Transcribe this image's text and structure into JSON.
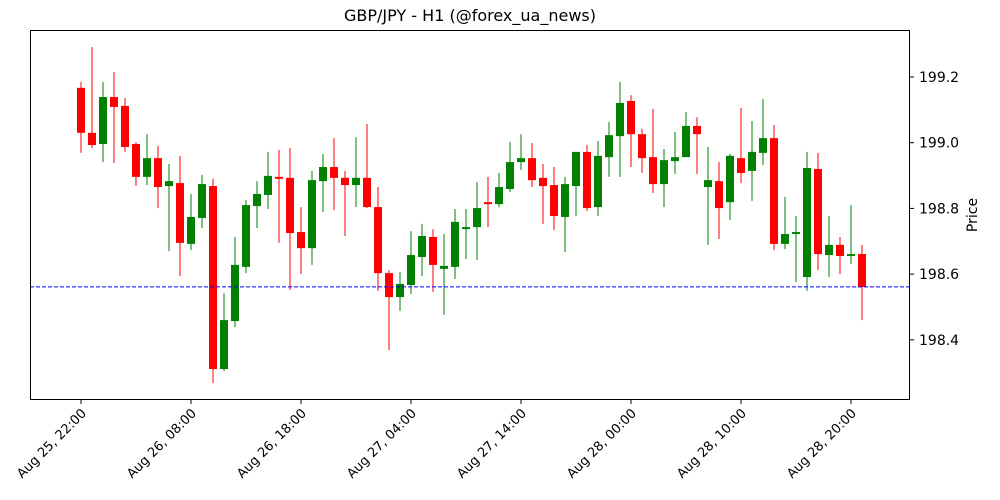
{
  "chart_data": {
    "type": "candlestick",
    "title": "GBP/JPY - H1 (@forex_ua_news)",
    "xlabel": "",
    "ylabel": "Price",
    "ylim": [
      198.22,
      199.33
    ],
    "yticks": [
      198.4,
      198.6,
      198.8,
      199.0,
      199.2
    ],
    "ytick_labels": [
      "198.4",
      "198.6",
      "198.8",
      "199.0",
      "199.2"
    ],
    "xticks": [
      {
        "index": 0,
        "label": "Aug 25, 22:00"
      },
      {
        "index": 10,
        "label": "Aug 26, 08:00"
      },
      {
        "index": 20,
        "label": "Aug 26, 18:00"
      },
      {
        "index": 30,
        "label": "Aug 27, 04:00"
      },
      {
        "index": 40,
        "label": "Aug 27, 14:00"
      },
      {
        "index": 50,
        "label": "Aug 28, 00:00"
      },
      {
        "index": 60,
        "label": "Aug 28, 10:00"
      },
      {
        "index": 70,
        "label": "Aug 28, 20:00"
      }
    ],
    "grid": false,
    "up_color": "#008000",
    "down_color": "#ff0000",
    "reference_line": {
      "value": 198.561,
      "color": "#0000ff",
      "style": "dashed"
    },
    "candle_fields": [
      "time",
      "open",
      "high",
      "low",
      "close"
    ],
    "candles": [
      [
        "Aug 25, 22:00",
        199.167,
        199.185,
        198.969,
        199.03
      ],
      [
        "Aug 25, 23:00",
        199.03,
        199.291,
        198.984,
        198.993
      ],
      [
        "Aug 26, 00:00",
        198.996,
        199.185,
        198.941,
        199.139
      ],
      [
        "Aug 26, 01:00",
        199.139,
        199.215,
        198.938,
        199.109
      ],
      [
        "Aug 26, 02:00",
        199.112,
        199.136,
        198.972,
        198.987
      ],
      [
        "Aug 26, 03:00",
        198.996,
        199.002,
        198.868,
        198.896
      ],
      [
        "Aug 26, 04:00",
        198.896,
        199.026,
        198.871,
        198.953
      ],
      [
        "Aug 26, 05:00",
        198.953,
        198.99,
        198.801,
        198.865
      ],
      [
        "Aug 26, 06:00",
        198.868,
        198.935,
        198.67,
        198.883
      ],
      [
        "Aug 26, 07:00",
        198.877,
        198.96,
        198.594,
        198.695
      ],
      [
        "Aug 26, 08:00",
        198.692,
        198.844,
        198.673,
        198.774
      ],
      [
        "Aug 26, 09:00",
        198.771,
        198.902,
        198.74,
        198.874
      ],
      [
        "Aug 26, 10:00",
        198.868,
        198.89,
        198.268,
        198.311
      ],
      [
        "Aug 26, 11:00",
        198.311,
        198.542,
        198.305,
        198.46
      ],
      [
        "Aug 26, 12:00",
        198.457,
        198.713,
        198.439,
        198.628
      ],
      [
        "Aug 26, 13:00",
        198.622,
        198.826,
        198.603,
        198.81
      ],
      [
        "Aug 26, 14:00",
        198.807,
        198.883,
        198.74,
        198.844
      ],
      [
        "Aug 26, 15:00",
        198.841,
        198.972,
        198.798,
        198.899
      ],
      [
        "Aug 26, 16:00",
        198.896,
        198.978,
        198.695,
        198.89
      ],
      [
        "Aug 26, 17:00",
        198.893,
        198.984,
        198.552,
        198.725
      ],
      [
        "Aug 26, 18:00",
        198.728,
        198.804,
        198.6,
        198.679
      ],
      [
        "Aug 26, 19:00",
        198.679,
        198.914,
        198.628,
        198.886
      ],
      [
        "Aug 26, 20:00",
        198.883,
        198.966,
        198.789,
        198.926
      ],
      [
        "Aug 26, 21:00",
        198.926,
        199.014,
        198.795,
        198.893
      ],
      [
        "Aug 26, 22:00",
        198.893,
        198.914,
        198.716,
        198.871
      ],
      [
        "Aug 26, 23:00",
        198.871,
        199.017,
        198.804,
        198.893
      ],
      [
        "Aug 27, 00:00",
        198.893,
        199.057,
        198.801,
        198.804
      ],
      [
        "Aug 27, 01:00",
        198.804,
        198.865,
        198.549,
        198.603
      ],
      [
        "Aug 27, 02:00",
        198.603,
        198.612,
        198.369,
        198.53
      ],
      [
        "Aug 27, 03:00",
        198.53,
        198.606,
        198.488,
        198.57
      ],
      [
        "Aug 27, 04:00",
        198.567,
        198.731,
        198.539,
        198.658
      ],
      [
        "Aug 27, 05:00",
        198.652,
        198.753,
        198.594,
        198.716
      ],
      [
        "Aug 27, 06:00",
        198.713,
        198.737,
        198.546,
        198.628
      ],
      [
        "Aug 27, 07:00",
        198.616,
        198.722,
        198.476,
        198.625
      ],
      [
        "Aug 27, 08:00",
        198.622,
        198.798,
        198.585,
        198.759
      ],
      [
        "Aug 27, 09:00",
        198.737,
        198.798,
        198.646,
        198.743
      ],
      [
        "Aug 27, 10:00",
        198.743,
        198.88,
        198.643,
        198.801
      ],
      [
        "Aug 27, 11:00",
        198.819,
        198.896,
        198.743,
        198.813
      ],
      [
        "Aug 27, 12:00",
        198.813,
        198.908,
        198.804,
        198.865
      ],
      [
        "Aug 27, 13:00",
        198.859,
        199.002,
        198.85,
        198.941
      ],
      [
        "Aug 27, 14:00",
        198.941,
        199.026,
        198.917,
        198.953
      ],
      [
        "Aug 27, 15:00",
        198.953,
        198.999,
        198.865,
        198.886
      ],
      [
        "Aug 27, 16:00",
        198.893,
        198.935,
        198.753,
        198.868
      ],
      [
        "Aug 27, 17:00",
        198.871,
        198.926,
        198.734,
        198.777
      ],
      [
        "Aug 27, 18:00",
        198.774,
        198.896,
        198.667,
        198.874
      ],
      [
        "Aug 27, 19:00",
        198.868,
        198.972,
        198.777,
        198.972
      ],
      [
        "Aug 27, 20:00",
        198.972,
        198.993,
        198.792,
        198.801
      ],
      [
        "Aug 27, 21:00",
        198.804,
        199.005,
        198.777,
        198.96
      ],
      [
        "Aug 27, 22:00",
        198.956,
        199.063,
        198.896,
        199.023
      ],
      [
        "Aug 27, 23:00",
        199.02,
        199.185,
        198.896,
        199.121
      ],
      [
        "Aug 28, 00:00",
        199.127,
        199.145,
        198.926,
        199.026
      ],
      [
        "Aug 28, 01:00",
        199.026,
        199.042,
        198.908,
        198.953
      ],
      [
        "Aug 28, 02:00",
        198.956,
        199.103,
        198.847,
        198.874
      ],
      [
        "Aug 28, 03:00",
        198.874,
        198.981,
        198.804,
        198.947
      ],
      [
        "Aug 28, 04:00",
        198.944,
        199.033,
        198.905,
        198.956
      ],
      [
        "Aug 28, 05:00",
        198.956,
        199.093,
        198.956,
        199.051
      ],
      [
        "Aug 28, 06:00",
        199.051,
        199.078,
        198.905,
        199.026
      ],
      [
        "Aug 28, 07:00",
        198.865,
        198.987,
        198.689,
        198.886
      ],
      [
        "Aug 28, 08:00",
        198.883,
        198.941,
        198.707,
        198.801
      ],
      [
        "Aug 28, 09:00",
        198.819,
        198.966,
        198.765,
        198.96
      ],
      [
        "Aug 28, 10:00",
        198.953,
        199.106,
        198.877,
        198.908
      ],
      [
        "Aug 28, 11:00",
        198.914,
        199.066,
        198.823,
        198.972
      ],
      [
        "Aug 28, 12:00",
        198.969,
        199.133,
        198.932,
        199.014
      ],
      [
        "Aug 28, 13:00",
        199.014,
        199.054,
        198.673,
        198.692
      ],
      [
        "Aug 28, 14:00",
        198.692,
        198.835,
        198.676,
        198.722
      ],
      [
        "Aug 28, 15:00",
        198.722,
        198.777,
        198.576,
        198.728
      ],
      [
        "Aug 28, 16:00",
        198.591,
        198.972,
        198.549,
        198.923
      ],
      [
        "Aug 28, 17:00",
        198.92,
        198.969,
        198.612,
        198.661
      ],
      [
        "Aug 28, 18:00",
        198.658,
        198.777,
        198.591,
        198.689
      ],
      [
        "Aug 28, 19:00",
        198.689,
        198.713,
        198.6,
        198.655
      ],
      [
        "Aug 28, 20:00",
        198.655,
        198.81,
        198.631,
        198.661
      ],
      [
        "Aug 28, 21:00",
        198.661,
        198.689,
        198.46,
        198.561
      ]
    ]
  }
}
